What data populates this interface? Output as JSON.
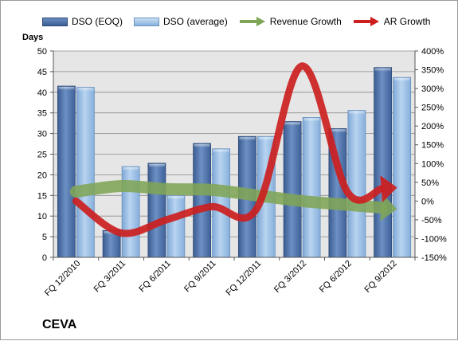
{
  "company": "CEVA",
  "colors": {
    "dso_eoq": "#4d72aa",
    "dso_avg": "#9ec2e8",
    "revenue_growth": "#7fa556",
    "ar_growth": "#cc1f1f"
  },
  "chart_data": {
    "type": "bar",
    "categories": [
      "FQ 12/2010",
      "FQ 3/2011",
      "FQ 6/2011",
      "FQ 9/2011",
      "FQ 12/2011",
      "FQ 3/2012",
      "FQ 6/2012",
      "FQ 9/2012"
    ],
    "series": [
      {
        "name": "DSO (EOQ)",
        "type": "bar",
        "axis": "left",
        "values": [
          41.5,
          6.5,
          22.8,
          27.6,
          29.3,
          32.9,
          31.2,
          46.0
        ]
      },
      {
        "name": "DSO (average)",
        "type": "bar",
        "axis": "left",
        "values": [
          41.2,
          22.0,
          15.0,
          26.3,
          29.3,
          33.9,
          35.6,
          43.6
        ]
      },
      {
        "name": "Revenue Growth",
        "type": "line-arrow",
        "axis": "right",
        "values": [
          25,
          40,
          32,
          30,
          15,
          0,
          -10,
          -20
        ]
      },
      {
        "name": "AR Growth",
        "type": "line-arrow",
        "axis": "right",
        "values": [
          0,
          -85,
          -50,
          -15,
          -20,
          360,
          25,
          35
        ]
      }
    ],
    "ylabel": "Days",
    "ylim": [
      0,
      50
    ],
    "yticks": [
      "0",
      "5",
      "10",
      "15",
      "20",
      "25",
      "30",
      "35",
      "40",
      "45",
      "50"
    ],
    "y2lim": [
      -150,
      400
    ],
    "y2ticks": [
      "-150%",
      "-100%",
      "-50%",
      "0%",
      "50%",
      "100%",
      "150%",
      "200%",
      "250%",
      "300%",
      "350%",
      "400%"
    ],
    "grid": true,
    "legend": "top"
  }
}
